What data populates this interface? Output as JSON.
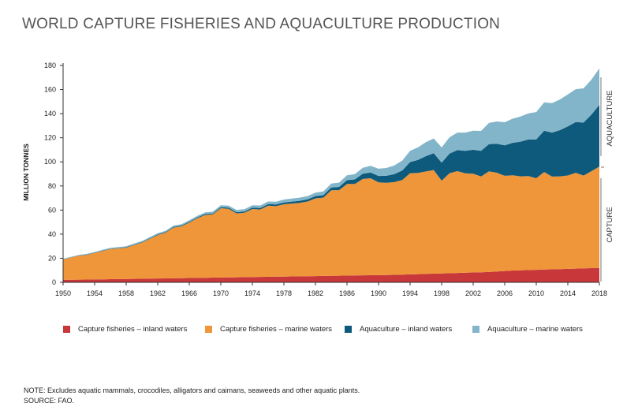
{
  "title": "WORLD CAPTURE FISHERIES AND AQUACULTURE PRODUCTION",
  "notes": {
    "note": "NOTE: Excludes aquatic mammals, crocodiles, alligators and caimans, seaweeds and other aquatic plants.",
    "source": "SOURCE: FAO."
  },
  "band_labels": {
    "aquaculture": "AQUACULTURE",
    "capture": "CAPTURE"
  },
  "colors": {
    "capture_inland": "#c8373a",
    "capture_marine": "#ef963a",
    "aquaculture_inland": "#0e5a7c",
    "aquaculture_marine": "#82b5c9",
    "axis": "#333333"
  },
  "chart_data": {
    "type": "area",
    "stacked": true,
    "title": "WORLD CAPTURE FISHERIES AND AQUACULTURE PRODUCTION",
    "xlabel": "",
    "ylabel": "MILLION TONNES",
    "xlim": [
      1950,
      2018
    ],
    "ylim": [
      0,
      180
    ],
    "yticks": [
      0,
      20,
      40,
      60,
      80,
      100,
      120,
      140,
      160,
      180
    ],
    "xticks": [
      1950,
      1954,
      1958,
      1962,
      1966,
      1970,
      1974,
      1978,
      1982,
      1986,
      1990,
      1994,
      1998,
      2002,
      2006,
      2010,
      2014,
      2018
    ],
    "grid": false,
    "legend_position": "bottom",
    "x": [
      1950,
      1951,
      1952,
      1953,
      1954,
      1955,
      1956,
      1957,
      1958,
      1959,
      1960,
      1961,
      1962,
      1963,
      1964,
      1965,
      1966,
      1967,
      1968,
      1969,
      1970,
      1971,
      1972,
      1973,
      1974,
      1975,
      1976,
      1977,
      1978,
      1979,
      1980,
      1981,
      1982,
      1983,
      1984,
      1985,
      1986,
      1987,
      1988,
      1989,
      1990,
      1991,
      1992,
      1993,
      1994,
      1995,
      1996,
      1997,
      1998,
      1999,
      2000,
      2001,
      2002,
      2003,
      2004,
      2005,
      2006,
      2007,
      2008,
      2009,
      2010,
      2011,
      2012,
      2013,
      2014,
      2015,
      2016,
      2017,
      2018
    ],
    "series": [
      {
        "name": "Capture fisheries – inland waters",
        "values": [
          2.0,
          2.1,
          2.2,
          2.3,
          2.4,
          2.5,
          2.6,
          2.7,
          2.8,
          2.9,
          3.0,
          3.1,
          3.2,
          3.3,
          3.4,
          3.5,
          3.6,
          3.7,
          3.8,
          3.9,
          4.0,
          4.1,
          4.2,
          4.3,
          4.4,
          4.5,
          4.6,
          4.7,
          4.8,
          4.9,
          5.0,
          5.1,
          5.2,
          5.3,
          5.4,
          5.5,
          5.6,
          5.7,
          5.8,
          5.9,
          6.0,
          6.1,
          6.2,
          6.4,
          6.6,
          6.8,
          7.0,
          7.2,
          7.4,
          7.6,
          7.8,
          8.0,
          8.2,
          8.4,
          8.6,
          9.0,
          9.4,
          9.8,
          10.0,
          10.2,
          10.4,
          10.6,
          10.8,
          11.0,
          11.2,
          11.4,
          11.6,
          11.8,
          12.0
        ]
      },
      {
        "name": "Capture fisheries – marine waters",
        "values": [
          17.0,
          18.5,
          20.0,
          20.5,
          22.0,
          23.5,
          25.0,
          25.5,
          26.0,
          28.0,
          30.0,
          33.0,
          36.0,
          38.0,
          42.0,
          43.0,
          46.0,
          49.5,
          52.0,
          52.5,
          57.5,
          57.0,
          53.0,
          53.5,
          56.5,
          56.0,
          59.0,
          58.5,
          60.0,
          60.5,
          61.0,
          62.0,
          64.5,
          65.0,
          71.0,
          71.0,
          76.0,
          76.0,
          80.0,
          80.5,
          77.0,
          76.5,
          77.0,
          78.5,
          84.0,
          84.0,
          85.0,
          86.0,
          77.0,
          83.0,
          84.5,
          82.5,
          82.0,
          79.5,
          83.5,
          82.0,
          79.0,
          79.0,
          78.0,
          78.0,
          76.0,
          81.0,
          77.0,
          77.0,
          77.5,
          79.5,
          77.0,
          80.5,
          84.0
        ]
      },
      {
        "name": "Aquaculture – inland waters",
        "values": [
          0.1,
          0.1,
          0.1,
          0.2,
          0.2,
          0.3,
          0.3,
          0.3,
          0.4,
          0.4,
          0.4,
          0.5,
          0.5,
          0.5,
          0.6,
          0.6,
          0.7,
          0.7,
          0.8,
          0.8,
          0.9,
          0.9,
          1.0,
          1.0,
          1.1,
          1.2,
          1.3,
          1.4,
          1.5,
          1.6,
          1.7,
          1.8,
          1.9,
          2.0,
          2.3,
          2.7,
          3.2,
          3.7,
          4.3,
          4.8,
          5.3,
          5.8,
          6.6,
          7.9,
          9.2,
          10.8,
          12.7,
          14.0,
          14.9,
          16.2,
          17.5,
          18.6,
          19.8,
          21.2,
          22.6,
          24.0,
          25.3,
          27.0,
          28.8,
          30.4,
          32.3,
          34.3,
          36.5,
          38.3,
          40.7,
          42.1,
          44.0,
          47.0,
          51.3
        ]
      },
      {
        "name": "Aquaculture – marine waters",
        "values": [
          0.5,
          0.5,
          0.5,
          0.6,
          0.6,
          0.7,
          0.7,
          0.8,
          0.8,
          0.9,
          0.9,
          1.0,
          1.0,
          1.0,
          1.1,
          1.1,
          1.2,
          1.3,
          1.4,
          1.5,
          1.6,
          1.7,
          1.8,
          1.9,
          2.0,
          2.1,
          2.2,
          2.3,
          2.4,
          2.5,
          2.6,
          2.7,
          2.9,
          3.1,
          3.3,
          3.6,
          4.0,
          4.5,
          5.0,
          5.5,
          6.0,
          6.5,
          7.2,
          8.2,
          9.3,
          10.4,
          11.6,
          12.2,
          12.7,
          13.6,
          14.5,
          15.2,
          15.8,
          16.6,
          17.6,
          18.5,
          19.2,
          20.0,
          20.8,
          21.7,
          22.6,
          23.4,
          24.5,
          25.5,
          26.6,
          27.3,
          28.4,
          29.0,
          30.3
        ]
      }
    ]
  }
}
